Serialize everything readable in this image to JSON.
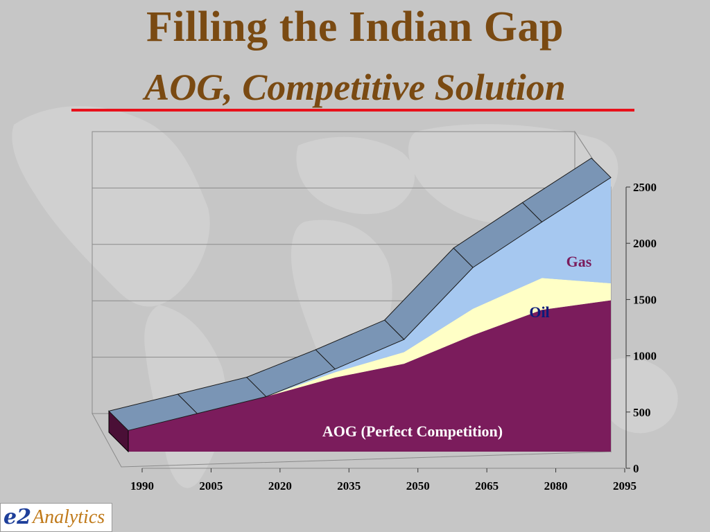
{
  "slide": {
    "title": "Filling the Indian Gap",
    "subtitle": "AOG, Competitive Solution",
    "accent_rule_color": "#e8111b",
    "title_color": "#7a4a12",
    "background_color": "#c6c6c6"
  },
  "logo": {
    "mark": "e2",
    "text": "Analytics"
  },
  "chart_data": {
    "type": "area",
    "style": "3d-stacked",
    "x": [
      1990,
      2005,
      2020,
      2035,
      2050,
      2065,
      2080,
      2095
    ],
    "tick_labels_x": [
      "1990",
      "2005",
      "2020",
      "2035",
      "2050",
      "2065",
      "2080",
      "2095"
    ],
    "ylim": [
      0,
      2500
    ],
    "y_ticks": [
      0,
      500,
      1000,
      1500,
      2000,
      2500
    ],
    "tick_labels_y": [
      "0",
      "500",
      "1000",
      "1500",
      "2000",
      "2500"
    ],
    "y_axis_position": "right",
    "grid": true,
    "series": [
      {
        "name": "AOG (Perfect Competition)",
        "color": "#7b1c5c",
        "label_color": "#ffffff",
        "values": [
          200,
          360,
          520,
          700,
          830,
          1100,
          1340,
          1430
        ]
      },
      {
        "name": "Oil",
        "color": "#ffffc6",
        "label_color": "#0b1a7a",
        "values": [
          0,
          0,
          0,
          50,
          110,
          250,
          300,
          160
        ]
      },
      {
        "name": "Gas",
        "color": "#a6c8f0",
        "label_color": "#7b1c5c",
        "values": [
          0,
          0,
          0,
          30,
          120,
          390,
          530,
          1000
        ]
      }
    ],
    "top_face_color": "#7a95b5"
  }
}
